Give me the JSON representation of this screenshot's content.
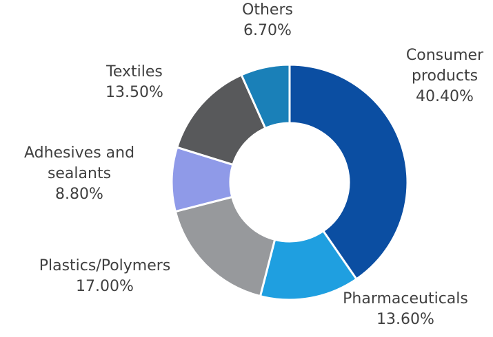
{
  "chart_data": {
    "type": "donut",
    "categories": [
      "Consumer products",
      "Pharmaceuticals",
      "Plastics/Polymers",
      "Adhesives and sealants",
      "Textiles",
      "Others"
    ],
    "values": [
      40.4,
      13.6,
      17.0,
      8.8,
      13.5,
      6.7
    ],
    "value_labels": [
      "40.40%",
      "13.60%",
      "17.00%",
      "8.80%",
      "13.50%",
      "6.70%"
    ],
    "colors": [
      "#0b4ea2",
      "#1f9fe0",
      "#97999c",
      "#8f9ae8",
      "#58595b",
      "#1a80b8"
    ]
  }
}
